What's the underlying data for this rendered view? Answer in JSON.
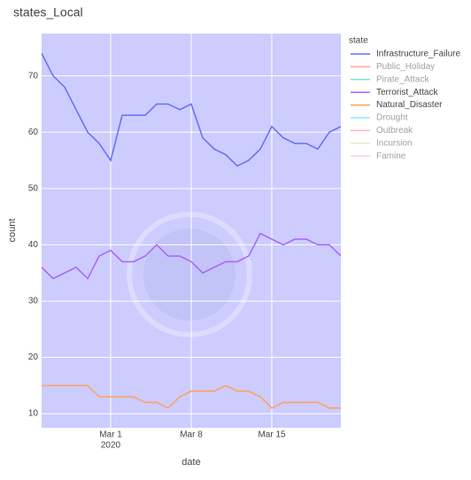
{
  "chart_data": {
    "type": "line",
    "title": "states_Local",
    "x_label": "date",
    "y_label": "count",
    "legend_title": "state",
    "x": [
      "2020-02-24",
      "2020-02-25",
      "2020-02-26",
      "2020-02-27",
      "2020-02-28",
      "2020-02-29",
      "2020-03-01",
      "2020-03-02",
      "2020-03-03",
      "2020-03-04",
      "2020-03-05",
      "2020-03-06",
      "2020-03-07",
      "2020-03-08",
      "2020-03-09",
      "2020-03-10",
      "2020-03-11",
      "2020-03-12",
      "2020-03-13",
      "2020-03-14",
      "2020-03-15",
      "2020-03-16",
      "2020-03-17",
      "2020-03-18",
      "2020-03-19",
      "2020-03-20",
      "2020-03-21"
    ],
    "series": [
      {
        "name": "Infrastructure_Failure",
        "color": "#636efa",
        "visible": true,
        "values": [
          74,
          70,
          68,
          64,
          60,
          58,
          55,
          63,
          63,
          63,
          65,
          65,
          64,
          65,
          59,
          57,
          56,
          54,
          55,
          57,
          61,
          59,
          58,
          58,
          57,
          60,
          61
        ]
      },
      {
        "name": "Public_Holiday",
        "color": "#ef553b",
        "visible": false
      },
      {
        "name": "Pirate_Attack",
        "color": "#00cc96",
        "visible": false
      },
      {
        "name": "Terrorist_Attack",
        "color": "#ab63fa",
        "visible": true,
        "values": [
          36,
          34,
          35,
          36,
          34,
          38,
          39,
          37,
          37,
          38,
          40,
          38,
          38,
          37,
          35,
          36,
          37,
          37,
          38,
          42,
          41,
          40,
          41,
          41,
          40,
          40,
          38
        ]
      },
      {
        "name": "Natural_Disaster",
        "color": "#ffa15a",
        "visible": true,
        "values": [
          15,
          15,
          15,
          15,
          15,
          13,
          13,
          13,
          13,
          12,
          12,
          11,
          13,
          14,
          14,
          14,
          15,
          14,
          14,
          13,
          11,
          12,
          12,
          12,
          12,
          11,
          11
        ]
      },
      {
        "name": "Drought",
        "color": "#19d3f3",
        "visible": false
      },
      {
        "name": "Outbreak",
        "color": "#ff6692",
        "visible": false
      },
      {
        "name": "Incursion",
        "color": "#b6e880",
        "visible": false
      },
      {
        "name": "Famine",
        "color": "#ff97ff",
        "visible": false
      }
    ],
    "xlim": [
      "2020-02-24",
      "2020-03-21"
    ],
    "xticks": [
      {
        "value": "2020-03-01",
        "label": "Mar 1"
      },
      {
        "value": "2020-03-08",
        "label": "Mar 8"
      },
      {
        "value": "2020-03-15",
        "label": "Mar 15"
      }
    ],
    "x_year_label": "2020",
    "ylim": [
      7.5,
      77.5
    ],
    "yticks": [
      10,
      20,
      30,
      40,
      50,
      60,
      70
    ],
    "grid": true,
    "plot_bgcolor": "#ccccff"
  }
}
